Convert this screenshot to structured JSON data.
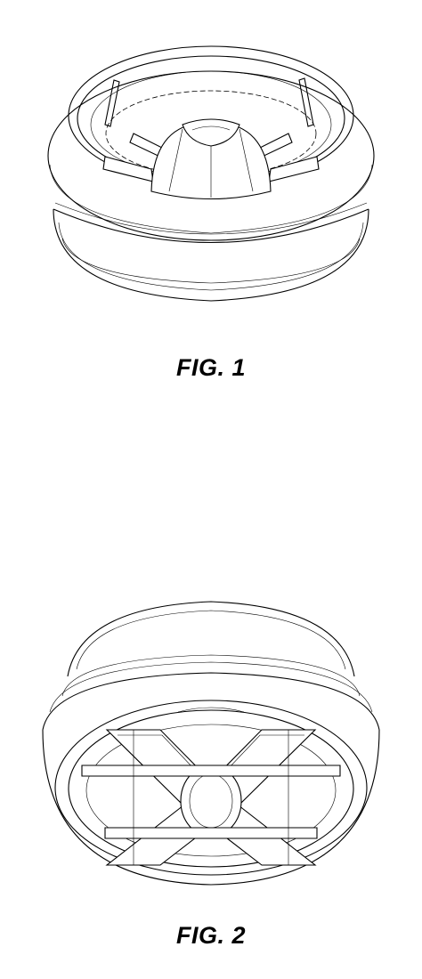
{
  "sheet": {
    "figures": [
      {
        "caption": "FIG. 1",
        "view": "top-perspective-view"
      },
      {
        "caption": "FIG. 2",
        "view": "bottom-perspective-view"
      }
    ]
  }
}
